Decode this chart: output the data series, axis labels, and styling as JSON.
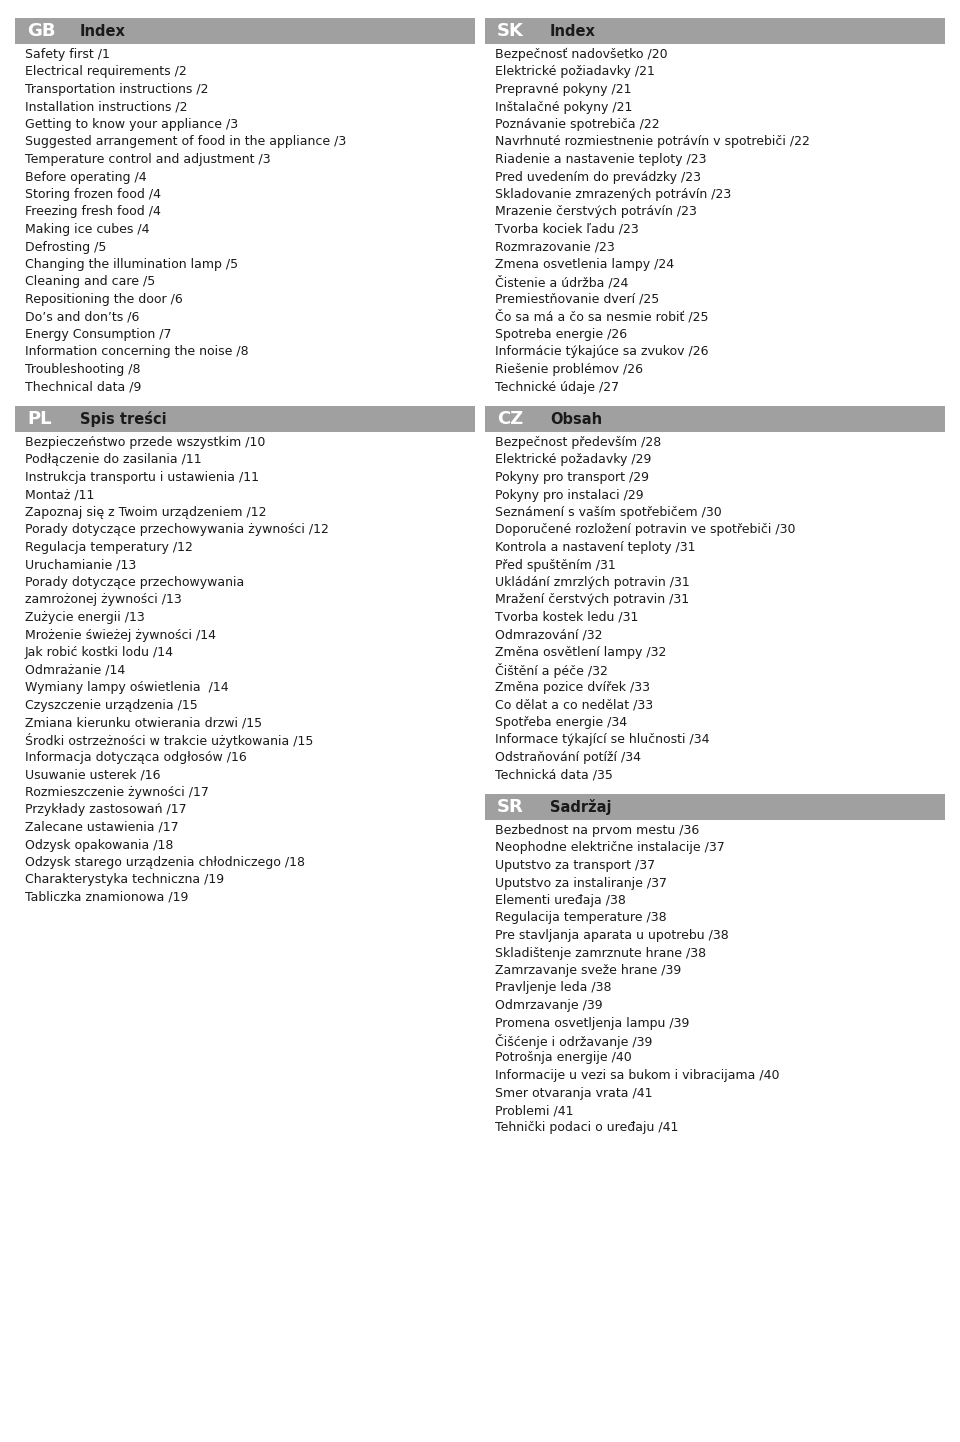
{
  "bg_color": "#ffffff",
  "header_bg": "#a0a0a0",
  "header_text_color": "#ffffff",
  "body_text_color": "#1a1a1a",
  "page_width": 9.6,
  "page_height": 14.42,
  "sections": [
    {
      "lang": "GB",
      "title": "Index",
      "col": 0,
      "items": [
        "Safety first /1",
        "Electrical requirements /2",
        "Transportation instructions /2",
        "Installation instructions /2",
        "Getting to know your appliance /3",
        "Suggested arrangement of food in the appliance /3",
        "Temperature control and adjustment /3",
        "Before operating /4",
        "Storing frozen food /4",
        "Freezing fresh food /4",
        "Making ice cubes /4",
        "Defrosting /5",
        "Changing the illumination lamp /5",
        "Cleaning and care /5",
        "Repositioning the door /6",
        "Do’s and don’ts /6",
        "Energy Consumption /7",
        "Information concerning the noise /8",
        "Troubleshooting /8",
        "Thechnical data /9"
      ]
    },
    {
      "lang": "SK",
      "title": "Index",
      "col": 1,
      "items": [
        "Bezpečnosť nadovšetko /20",
        "Elektrické požiadavky /21",
        "Prepravné pokyny /21",
        "Inštalačné pokyny /21",
        "Poznávanie spotrebiča /22",
        "Navrhnuté rozmiestnenie potrávín v spotrebiči /22",
        "Riadenie a nastavenie teploty /23",
        "Pred uvedením do prevádzky /23",
        "Skladovanie zmrazených potrávín /23",
        "Mrazenie čerstvých potrávín /23",
        "Tvorba kociek ľadu /23",
        "Rozmrazovanie /23",
        "Zmena osvetlenia lampy /24",
        "Čistenie a údržba /24",
        "Premiestňovanie dverí /25",
        "Čo sa má a čo sa nesmie robiť /25",
        "Spotreba energie /26",
        "Informácie týkajúce sa zvukov /26",
        "Riešenie problémov /26",
        "Technické údaje /27"
      ]
    },
    {
      "lang": "PL",
      "title": "Spis treści",
      "col": 0,
      "items": [
        "Bezpieczeństwo przede wszystkim /10",
        "Podłączenie do zasilania /11",
        "Instrukcja transportu i ustawienia /11",
        "Montaż /11",
        "Zapoznaj się z Twoim urządzeniem /12",
        "Porady dotyczące przechowywania żywności /12",
        "Regulacja temperatury /12",
        "Uruchamianie /13",
        "Porady dotyczące przechowywania",
        "zamrożonej żywności /13",
        "Zużycie energii /13",
        "Mrożenie świeżej żywności /14",
        "Jak robić kostki lodu /14",
        "Odmrażanie /14",
        "Wymiany lampy oświetlenia  /14",
        "Czyszczenie urządzenia /15",
        "Zmiana kierunku otwierania drzwi /15",
        "Środki ostrzeżności w trakcie użytkowania /15",
        "Informacja dotycząca odgłosów /16",
        "Usuwanie usterek /16",
        "Rozmieszczenie żywności /17",
        "Przykłady zastosowań /17",
        "Zalecane ustawienia /17",
        "Odzysk opakowania /18",
        "Odzysk starego urządzenia chłodniczego /18",
        "Charakterystyka techniczna /19",
        "Tabliczka znamionowa /19"
      ]
    },
    {
      "lang": "CZ",
      "title": "Obsah",
      "col": 1,
      "items": [
        "Bezpečnost především /28",
        "Elektrické požadavky /29",
        "Pokyny pro transport /29",
        "Pokyny pro instalaci /29",
        "Seznámení s vaším spotřebičem /30",
        "Doporučené rozložení potravin ve spotřebiči /30",
        "Kontrola a nastavení teploty /31",
        "Před spuštěním /31",
        "Ukládání zmrzlých potravin /31",
        "Mražení čerstvých potravin /31",
        "Tvorba kostek ledu /31",
        "Odmrazování /32",
        "Změna osvětlení lampy /32",
        "Čištění a péče /32",
        "Změna pozice dvířek /33",
        "Co dělat a co nedělat /33",
        "Spotřeba energie /34",
        "Informace týkající se hlučnosti /34",
        "Odstraňování potíží /34",
        "Technická data /35"
      ]
    },
    {
      "lang": "SR",
      "title": "Sadržaj",
      "col": 1,
      "items": [
        "Bezbednost na prvom mestu /36",
        "Neophodne električne instalacije /37",
        "Uputstvo za transport /37",
        "Uputstvo za instaliranje /37",
        "Elementi uređaja /38",
        "Regulacija temperature /38",
        "Pre stavljanja aparata u upotrebu /38",
        "Skladištenje zamrznute hrane /38",
        "Zamrzavanje sveže hrane /39",
        "Pravljenje leda /38",
        "Odmrzavanje /39",
        "Promena osvetljenja lampu /39",
        "Čišćenje i održavanje /39",
        "Potrošnja energije /40",
        "Informacije u vezi sa bukom i vibracijama /40",
        "Smer otvaranja vrata /41",
        "Problemi /41",
        "Tehnički podaci o uređaju /41"
      ]
    }
  ]
}
